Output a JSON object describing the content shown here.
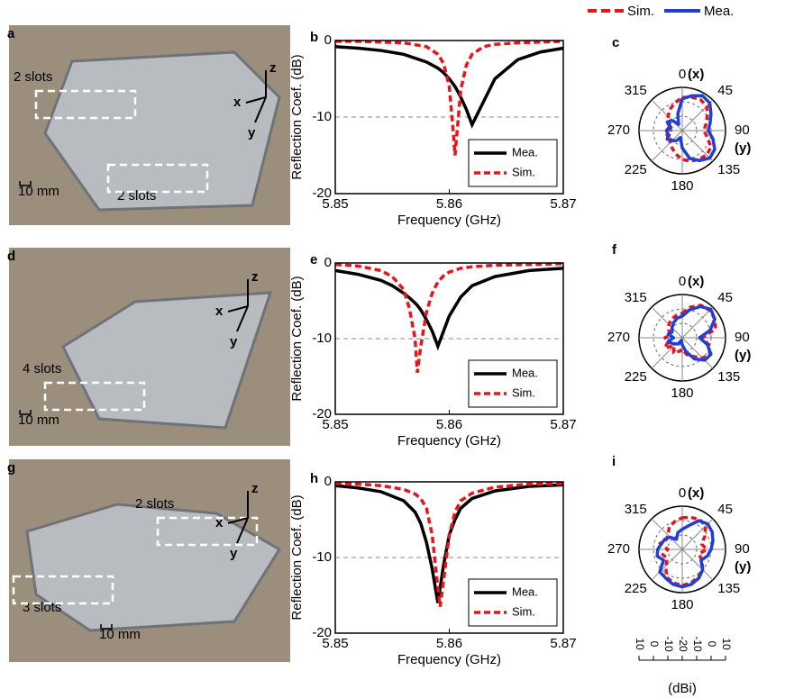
{
  "photos": [
    {
      "panel_label": "a",
      "notes": [
        "2 slots",
        "2 slots"
      ],
      "scale": "10 mm",
      "axes": [
        "z",
        "x",
        "y"
      ]
    },
    {
      "panel_label": "d",
      "notes": [
        "4 slots"
      ],
      "scale": "10 mm",
      "axes": [
        "z",
        "x",
        "y"
      ]
    },
    {
      "panel_label": "g",
      "notes": [
        "2 slots",
        "3 slots"
      ],
      "scale": "10 mm",
      "axes": [
        "z",
        "x",
        "y"
      ]
    }
  ],
  "chart_data": [
    {
      "type": "line",
      "panel_label": "b",
      "xlabel": "Frequency (GHz)",
      "ylabel": "Reflection Coef. (dB)",
      "xlim": [
        5.85,
        5.87
      ],
      "xticks": [
        5.85,
        5.86,
        5.87
      ],
      "ylim": [
        -20,
        0
      ],
      "yticks": [
        -20,
        -10,
        0
      ],
      "hline": -10,
      "legend": "lower right",
      "x": [
        5.85,
        5.852,
        5.854,
        5.856,
        5.858,
        5.859,
        5.8595,
        5.86,
        5.8603,
        5.8605,
        5.8608,
        5.861,
        5.8615,
        5.862,
        5.863,
        5.864,
        5.866,
        5.868,
        5.87
      ],
      "series": [
        {
          "name": "Mea.",
          "color": "#000000",
          "dash": false,
          "values": [
            -0.8,
            -1.0,
            -1.3,
            -1.8,
            -2.8,
            -3.6,
            -4.2,
            -5.0,
            -5.6,
            -6.0,
            -6.8,
            -7.4,
            -9.0,
            -11,
            -8.0,
            -5.0,
            -2.5,
            -1.5,
            -1.0
          ]
        },
        {
          "name": "Sim.",
          "color": "#e8141b",
          "dash": true,
          "values": [
            -0.1,
            -0.1,
            -0.2,
            -0.3,
            -0.8,
            -1.8,
            -3.0,
            -6.0,
            -11,
            -15,
            -10,
            -6.5,
            -3.2,
            -1.8,
            -0.8,
            -0.5,
            -0.3,
            -0.2,
            -0.1
          ]
        }
      ]
    },
    {
      "type": "polar",
      "panel_label": "c",
      "legend": "top",
      "x_label": "(x)",
      "y_label": "(y)",
      "thetaticks": [
        0,
        45,
        90,
        135,
        180,
        225,
        270,
        315
      ],
      "rlim": [
        -20,
        10
      ],
      "rticks": [
        -20,
        -10,
        0,
        10
      ],
      "theta": [
        0,
        15,
        30,
        45,
        60,
        75,
        90,
        105,
        120,
        135,
        150,
        165,
        180,
        195,
        210,
        225,
        240,
        255,
        270,
        285,
        300,
        315,
        330,
        345
      ],
      "series": [
        {
          "name": "Sim.",
          "color": "#e8141b",
          "dash": true,
          "values": [
            3,
            4,
            5,
            4,
            0,
            -3,
            -5,
            -2,
            3,
            4,
            3,
            2,
            0,
            -3,
            -6,
            -8,
            -12,
            -9,
            -12,
            -8,
            -10,
            -6,
            -3,
            0
          ]
        },
        {
          "name": "Mea.",
          "color": "#1f3fd6",
          "dash": false,
          "values": [
            2,
            5,
            8,
            7,
            3,
            0,
            -2,
            2,
            6,
            7,
            4,
            0,
            -8,
            -15,
            -12,
            -10,
            -8,
            -10,
            -9,
            -12,
            -8,
            -10,
            -15,
            -8
          ]
        }
      ]
    },
    {
      "type": "line",
      "panel_label": "e",
      "xlabel": "Frequency (GHz)",
      "ylabel": "Reflection Coef. (dB)",
      "xlim": [
        5.85,
        5.87
      ],
      "xticks": [
        5.85,
        5.86,
        5.87
      ],
      "ylim": [
        -20,
        0
      ],
      "yticks": [
        -20,
        -10,
        0
      ],
      "hline": -10,
      "legend": "lower right",
      "x": [
        5.85,
        5.852,
        5.854,
        5.855,
        5.856,
        5.8565,
        5.857,
        5.8572,
        5.8575,
        5.858,
        5.8585,
        5.859,
        5.8595,
        5.86,
        5.861,
        5.862,
        5.864,
        5.867,
        5.87
      ],
      "series": [
        {
          "name": "Mea.",
          "color": "#000000",
          "dash": false,
          "values": [
            -1.0,
            -1.5,
            -2.3,
            -3.0,
            -4.0,
            -4.6,
            -5.3,
            -5.6,
            -6.2,
            -7.5,
            -9.0,
            -11,
            -9.0,
            -7.0,
            -4.5,
            -3.0,
            -1.8,
            -1.0,
            -0.7
          ]
        },
        {
          "name": "Sim.",
          "color": "#e8141b",
          "dash": true,
          "values": [
            -0.2,
            -0.4,
            -1.0,
            -1.8,
            -3.5,
            -6.0,
            -10,
            -14.5,
            -11,
            -6.5,
            -4.0,
            -2.5,
            -1.7,
            -1.2,
            -0.7,
            -0.5,
            -0.3,
            -0.2,
            -0.1
          ]
        }
      ]
    },
    {
      "type": "polar",
      "panel_label": "f",
      "x_label": "(x)",
      "y_label": "(y)",
      "thetaticks": [
        0,
        45,
        90,
        135,
        180,
        225,
        270,
        315
      ],
      "rlim": [
        -20,
        10
      ],
      "rticks": [
        -20,
        -10,
        0,
        10
      ],
      "theta": [
        0,
        15,
        30,
        45,
        60,
        75,
        90,
        105,
        120,
        135,
        150,
        165,
        180,
        195,
        210,
        225,
        240,
        255,
        270,
        285,
        300,
        315,
        330,
        345
      ],
      "series": [
        {
          "color": "#e8141b",
          "dash": true,
          "values": [
            -3,
            2,
            6,
            7,
            6,
            4,
            -6,
            -1,
            2,
            0,
            -5,
            -8,
            -12,
            -10,
            -8,
            -12,
            -6,
            -10,
            -8,
            -12,
            -9,
            -7,
            -5,
            -4
          ]
        },
        {
          "color": "#1f3fd6",
          "dash": false,
          "values": [
            -5,
            0,
            5,
            8,
            6,
            0,
            -8,
            -2,
            3,
            2,
            -3,
            -10,
            -15,
            -18,
            -15,
            -14,
            -12,
            -10,
            -14,
            -10,
            -12,
            -10,
            -8,
            -6
          ]
        }
      ]
    },
    {
      "type": "line",
      "panel_label": "h",
      "xlabel": "Frequency (GHz)",
      "ylabel": "Reflection Coef. (dB)",
      "xlim": [
        5.85,
        5.87
      ],
      "xticks": [
        5.85,
        5.86,
        5.87
      ],
      "ylim": [
        -20,
        0
      ],
      "yticks": [
        -20,
        -10,
        0
      ],
      "hline": -10,
      "legend": "lower right",
      "x": [
        5.85,
        5.852,
        5.854,
        5.856,
        5.857,
        5.8575,
        5.858,
        5.8585,
        5.859,
        5.8592,
        5.8595,
        5.86,
        5.8605,
        5.861,
        5.862,
        5.864,
        5.867,
        5.87
      ],
      "series": [
        {
          "name": "Mea.",
          "color": "#000000",
          "dash": false,
          "values": [
            -0.5,
            -0.8,
            -1.3,
            -2.5,
            -4.0,
            -5.5,
            -8.0,
            -11.5,
            -16,
            -14,
            -11,
            -7.0,
            -5.0,
            -3.5,
            -2.2,
            -1.2,
            -0.6,
            -0.4
          ]
        },
        {
          "name": "Sim.",
          "color": "#e8141b",
          "dash": true,
          "values": [
            -0.2,
            -0.3,
            -0.5,
            -1.0,
            -1.6,
            -2.2,
            -3.5,
            -7.0,
            -14,
            -16.5,
            -13,
            -7.0,
            -4.0,
            -2.5,
            -1.5,
            -0.7,
            -0.3,
            -0.2
          ]
        }
      ]
    },
    {
      "type": "polar",
      "panel_label": "i",
      "x_label": "(x)",
      "y_label": "(y)",
      "scale_bar": true,
      "rlabel": "(dBi)",
      "thetaticks": [
        0,
        45,
        90,
        135,
        180,
        225,
        270,
        315
      ],
      "rlim": [
        -20,
        10
      ],
      "rticks": [
        -20,
        -10,
        0,
        10
      ],
      "theta": [
        0,
        15,
        30,
        45,
        60,
        75,
        90,
        105,
        120,
        135,
        150,
        165,
        180,
        195,
        210,
        225,
        240,
        255,
        270,
        285,
        300,
        315,
        330,
        345
      ],
      "series": [
        {
          "color": "#e8141b",
          "dash": true,
          "values": [
            2,
            3,
            4,
            3,
            -2,
            -6,
            -3,
            -8,
            -4,
            0,
            2,
            4,
            5,
            4,
            2,
            -4,
            -8,
            -6,
            -10,
            -4,
            -7,
            -6,
            -2,
            0
          ]
        },
        {
          "color": "#1f3fd6",
          "dash": false,
          "values": [
            -6,
            -3,
            3,
            5,
            4,
            2,
            0,
            -2,
            -5,
            0,
            3,
            5,
            6,
            5,
            3,
            2,
            -5,
            -2,
            -3,
            -5,
            -6,
            -8,
            -12,
            -8
          ]
        }
      ]
    }
  ]
}
